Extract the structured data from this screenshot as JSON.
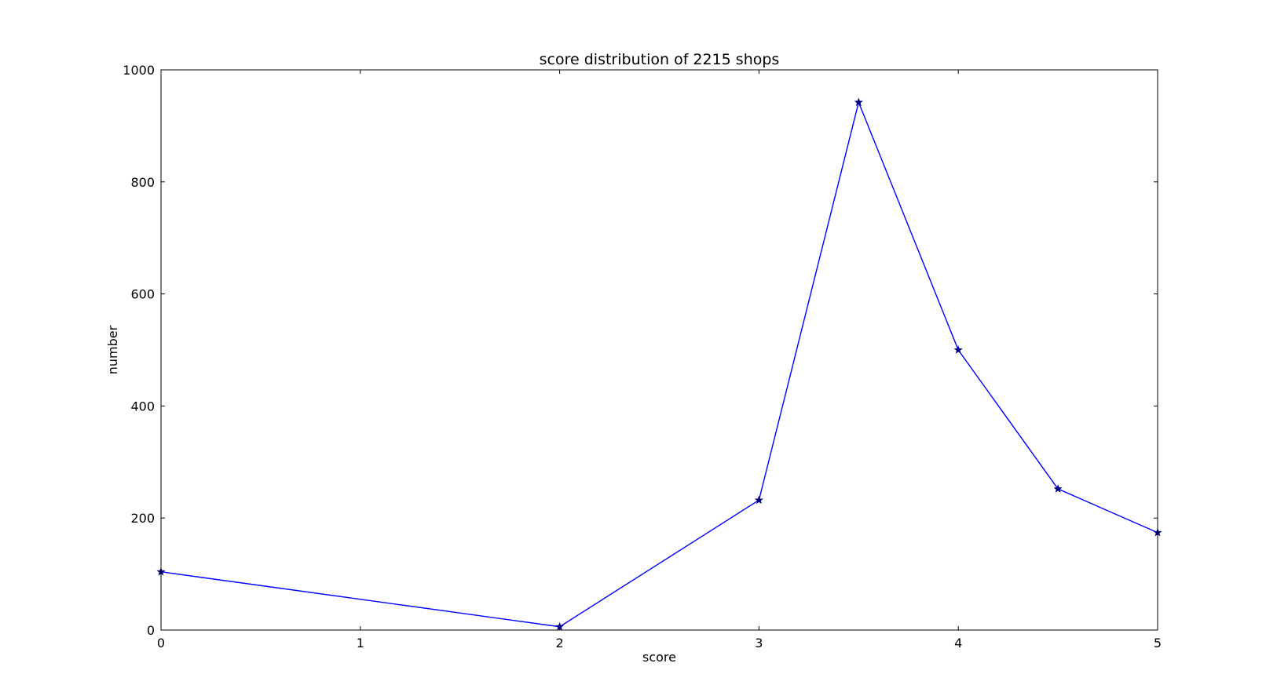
{
  "chart_data": {
    "type": "line",
    "title": "score distribution of 2215 shops",
    "xlabel": "score",
    "ylabel": "number",
    "xlim": [
      0,
      5
    ],
    "ylim": [
      0,
      1000
    ],
    "x_ticks": [
      "0",
      "1",
      "2",
      "3",
      "4",
      "5"
    ],
    "y_ticks": [
      "0",
      "200",
      "400",
      "600",
      "800",
      "1000"
    ],
    "grid": false,
    "legend": "none",
    "series": [
      {
        "color": "#0000ff",
        "marker": "star",
        "marker_color": "#000080",
        "x": [
          0,
          2,
          3,
          3.5,
          4,
          4.5,
          5
        ],
        "y": [
          104,
          6,
          232,
          942,
          500,
          252,
          174
        ]
      }
    ]
  }
}
